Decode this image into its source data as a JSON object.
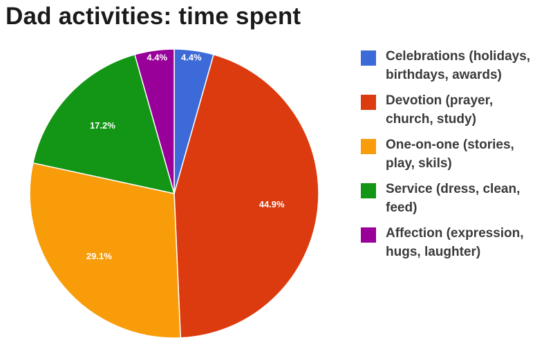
{
  "chart_data": {
    "type": "pie",
    "title": "Dad activities: time spent",
    "legend_position": "right",
    "slices": [
      {
        "label": "Celebrations (holidays, birthdays, awards)",
        "legend_lines": [
          "Celebrations (holidays,",
          "birthdays, awards)"
        ],
        "value": 4.4,
        "display": "4.4%",
        "color": "#3c6ad8"
      },
      {
        "label": "Devotion (prayer, church, study)",
        "legend_lines": [
          "Devotion (prayer,",
          "church, study)"
        ],
        "value": 44.9,
        "display": "44.9%",
        "color": "#dc3b0f"
      },
      {
        "label": "One-on-one (stories, play, skils)",
        "legend_lines": [
          "One-on-one (stories,",
          "play, skils)"
        ],
        "value": 29.1,
        "display": "29.1%",
        "color": "#f99c0a"
      },
      {
        "label": "Service (dress, clean, feed)",
        "legend_lines": [
          "Service (dress, clean,",
          "feed)"
        ],
        "value": 17.2,
        "display": "17.2%",
        "color": "#139515"
      },
      {
        "label": "Affection (expression, hugs, laughter)",
        "legend_lines": [
          "Affection (expression,",
          "hugs, laughter)"
        ],
        "value": 4.4,
        "display": "4.4%",
        "color": "#990099"
      }
    ]
  }
}
